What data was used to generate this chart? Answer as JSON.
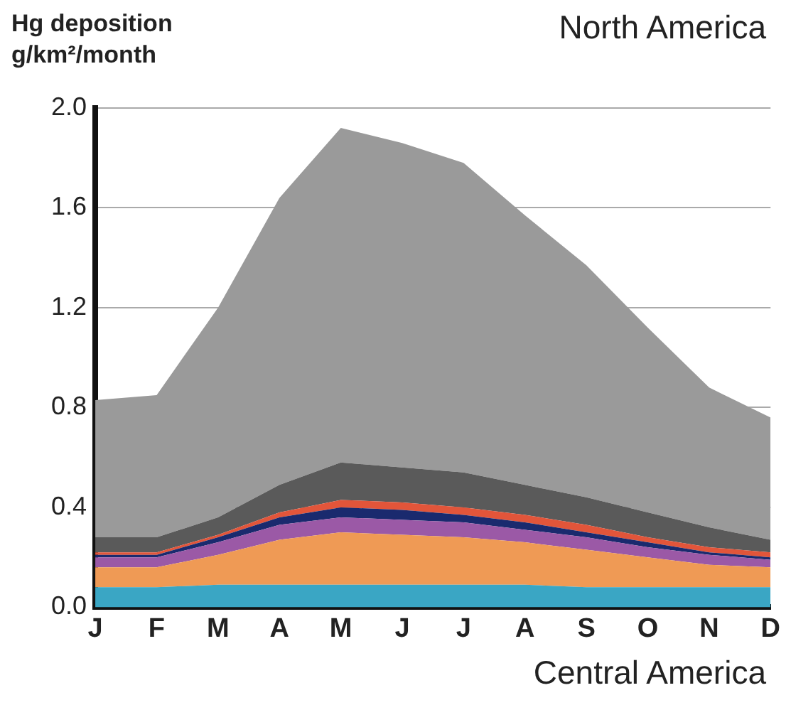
{
  "chart_data": {
    "type": "area",
    "stacked": true,
    "title": "North America",
    "ylabel": "Hg deposition\ng/km²/month",
    "annotations": [
      "Central America"
    ],
    "categories": [
      "J",
      "F",
      "M",
      "A",
      "M",
      "J",
      "J",
      "A",
      "S",
      "O",
      "N",
      "D"
    ],
    "series": [
      {
        "color": "#3aa6c4",
        "values": [
          0.08,
          0.08,
          0.09,
          0.09,
          0.09,
          0.09,
          0.09,
          0.09,
          0.08,
          0.08,
          0.08,
          0.08
        ]
      },
      {
        "color": "#ef9a55",
        "values": [
          0.08,
          0.08,
          0.12,
          0.18,
          0.21,
          0.2,
          0.19,
          0.17,
          0.15,
          0.12,
          0.09,
          0.08
        ]
      },
      {
        "color": "#9b59a6",
        "values": [
          0.04,
          0.04,
          0.05,
          0.06,
          0.06,
          0.06,
          0.06,
          0.05,
          0.05,
          0.04,
          0.04,
          0.03
        ]
      },
      {
        "color": "#1a2a6e",
        "values": [
          0.01,
          0.01,
          0.02,
          0.03,
          0.04,
          0.04,
          0.03,
          0.03,
          0.02,
          0.02,
          0.01,
          0.01
        ]
      },
      {
        "color": "#e2553a",
        "values": [
          0.01,
          0.01,
          0.01,
          0.02,
          0.03,
          0.03,
          0.03,
          0.03,
          0.03,
          0.02,
          0.02,
          0.02
        ]
      },
      {
        "color": "#5a5a5a",
        "values": [
          0.06,
          0.06,
          0.07,
          0.11,
          0.15,
          0.14,
          0.14,
          0.12,
          0.11,
          0.1,
          0.08,
          0.05
        ]
      },
      {
        "color": "#9a9a9a",
        "values": [
          0.55,
          0.57,
          0.84,
          1.15,
          1.34,
          1.3,
          1.24,
          1.08,
          0.93,
          0.74,
          0.56,
          0.49
        ]
      }
    ],
    "ylim": [
      0,
      2.0
    ],
    "yticks": [
      {
        "value": 0,
        "label": "0.0"
      },
      {
        "value": 0.4,
        "label": "0.4"
      },
      {
        "value": 0.8,
        "label": "0.8"
      },
      {
        "value": 1.2,
        "label": "1.2"
      },
      {
        "value": 1.6,
        "label": "1.6"
      },
      {
        "value": 2.0,
        "label": "2.0"
      }
    ],
    "grid": "y",
    "legend": false
  }
}
